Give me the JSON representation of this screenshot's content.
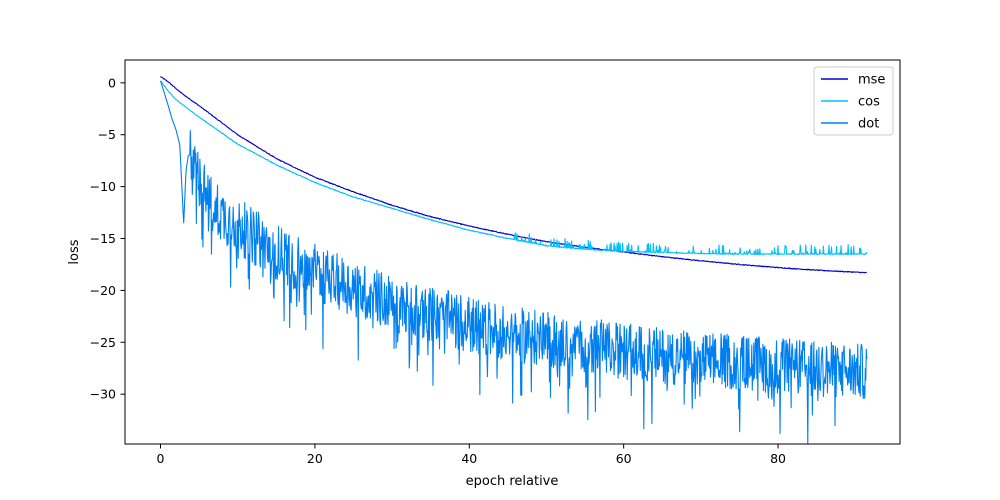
{
  "chart_data": {
    "type": "line",
    "title": "",
    "xlabel": "epoch relative",
    "ylabel": "loss",
    "xlim": [
      -4.6,
      95.8
    ],
    "ylim": [
      -34.8,
      2.2
    ],
    "x_ticks": [
      0,
      20,
      40,
      60,
      80
    ],
    "y_ticks": [
      0,
      -5,
      -10,
      -15,
      -20,
      -25,
      -30
    ],
    "grid": false,
    "legend_position": "top-right",
    "x_max": 91.5,
    "series": [
      {
        "name": "mse",
        "color": "#0000cd",
        "points": [
          [
            0,
            0.6
          ],
          [
            1,
            0.1
          ],
          [
            2,
            -0.55
          ],
          [
            3,
            -1.15
          ],
          [
            5,
            -2.2
          ],
          [
            10,
            -5.0
          ],
          [
            15,
            -7.3
          ],
          [
            20,
            -9.1
          ],
          [
            25,
            -10.5
          ],
          [
            30,
            -11.8
          ],
          [
            35,
            -12.9
          ],
          [
            40,
            -13.8
          ],
          [
            45,
            -14.6
          ],
          [
            50,
            -15.3
          ],
          [
            55,
            -15.85
          ],
          [
            60,
            -16.3
          ],
          [
            65,
            -16.75
          ],
          [
            70,
            -17.15
          ],
          [
            75,
            -17.5
          ],
          [
            80,
            -17.8
          ],
          [
            85,
            -18.05
          ],
          [
            91.5,
            -18.3
          ]
        ]
      },
      {
        "name": "cos",
        "color": "#00bfff",
        "points": [
          [
            0,
            0.2
          ],
          [
            1,
            -0.8
          ],
          [
            2,
            -1.6
          ],
          [
            3,
            -2.2
          ],
          [
            5,
            -3.3
          ],
          [
            10,
            -5.9
          ],
          [
            15,
            -7.9
          ],
          [
            20,
            -9.6
          ],
          [
            25,
            -11.0
          ],
          [
            30,
            -12.1
          ],
          [
            35,
            -13.2
          ],
          [
            40,
            -14.2
          ],
          [
            45,
            -15.0
          ],
          [
            50,
            -15.7
          ],
          [
            55,
            -16.05
          ],
          [
            60,
            -16.25
          ],
          [
            65,
            -16.35
          ],
          [
            70,
            -16.45
          ],
          [
            75,
            -16.5
          ],
          [
            80,
            -16.5
          ],
          [
            85,
            -16.5
          ],
          [
            91.5,
            -16.5
          ]
        ]
      },
      {
        "name": "dot",
        "color": "#0080f0",
        "points": [
          [
            0,
            0.2
          ],
          [
            0.5,
            -1.0
          ],
          [
            1,
            -2.2
          ],
          [
            1.5,
            -3.5
          ],
          [
            2,
            -4.5
          ],
          [
            2.5,
            -6.0
          ],
          [
            3,
            -13.6
          ],
          [
            3.3,
            -8.5
          ],
          [
            3.6,
            -7.0
          ],
          [
            4,
            -6.9
          ],
          [
            5,
            -8.5
          ],
          [
            6,
            -11.0
          ],
          [
            8,
            -12.5
          ],
          [
            10,
            -13.5
          ],
          [
            12,
            -14.5
          ],
          [
            15,
            -16.0
          ],
          [
            20,
            -18.0
          ],
          [
            25,
            -19.5
          ],
          [
            30,
            -21.0
          ],
          [
            35,
            -22.0
          ],
          [
            40,
            -23.0
          ],
          [
            45,
            -23.8
          ],
          [
            50,
            -24.5
          ],
          [
            55,
            -25.0
          ],
          [
            60,
            -25.6
          ],
          [
            65,
            -26.0
          ],
          [
            70,
            -26.4
          ],
          [
            75,
            -26.7
          ],
          [
            80,
            -27.0
          ],
          [
            85,
            -27.3
          ],
          [
            91.5,
            -27.6
          ]
        ],
        "noise_amplitude": 6
      }
    ]
  }
}
